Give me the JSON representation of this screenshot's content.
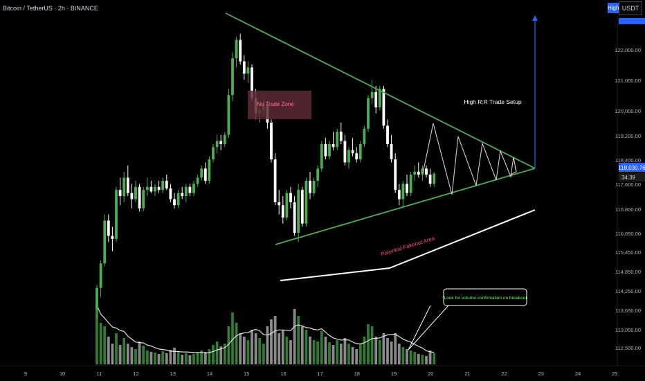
{
  "header": {
    "symbol_label": "Bitcoin / TetherUS · 2h · BINANCE"
  },
  "toolbar": {
    "high_label": "High",
    "currency_label": "USDT"
  },
  "price_axis": {
    "ticks": [
      "122,000.00",
      "121,000.00",
      "120,000.00",
      "119,200.00",
      "118,400.00",
      "117,600.00",
      "116,800.00",
      "116,050.00",
      "115,450.00",
      "114,850.00",
      "114,250.00",
      "113,650.00",
      "113,050.00",
      "112,500.00"
    ],
    "last_price_label": "118,030.76",
    "countdown_label": "34:39"
  },
  "time_axis": {
    "labels": [
      "9",
      "10",
      "11",
      "12",
      "13",
      "14",
      "15",
      "16",
      "17",
      "18",
      "19",
      "20",
      "21",
      "22",
      "23",
      "24",
      "25"
    ]
  },
  "annotations": {
    "no_trade_zone": "No Trade Zone",
    "setup_label": "High R:R Trade Setup",
    "fakeout_label": "Potential Fakeout Area",
    "volume_note": "*Look for volume confirmation on breakout."
  },
  "colors": {
    "up": "#4caf50",
    "down": "#ffffff",
    "triangle": "#4caf50",
    "accent": "#2962ff",
    "zone": "#5d2a35",
    "fakeout_text": "#ff4d8d",
    "vol_up": "#2e7d32",
    "vol_down": "#8a8a8a"
  },
  "chart_data": {
    "type": "candlestick",
    "title": "Bitcoin / TetherUS · 2h · BINANCE",
    "ylim": [
      112300,
      122800
    ],
    "candles": [
      {
        "o": 113600,
        "h": 114400,
        "l": 113300,
        "c": 114300,
        "v": 85
      },
      {
        "o": 114300,
        "h": 115200,
        "l": 114000,
        "c": 115100,
        "v": 60
      },
      {
        "o": 115100,
        "h": 116700,
        "l": 115000,
        "c": 116500,
        "v": 55
      },
      {
        "o": 116500,
        "h": 116700,
        "l": 115800,
        "c": 116000,
        "v": 40
      },
      {
        "o": 116000,
        "h": 116300,
        "l": 115500,
        "c": 115900,
        "v": 30
      },
      {
        "o": 115900,
        "h": 117600,
        "l": 115800,
        "c": 117500,
        "v": 45
      },
      {
        "o": 117500,
        "h": 117900,
        "l": 117000,
        "c": 117300,
        "v": 28
      },
      {
        "o": 117300,
        "h": 118100,
        "l": 117100,
        "c": 117900,
        "v": 38
      },
      {
        "o": 117900,
        "h": 118300,
        "l": 117300,
        "c": 117400,
        "v": 30
      },
      {
        "o": 117400,
        "h": 117700,
        "l": 116900,
        "c": 117200,
        "v": 25
      },
      {
        "o": 117200,
        "h": 117800,
        "l": 117100,
        "c": 117600,
        "v": 22
      },
      {
        "o": 117600,
        "h": 117700,
        "l": 116800,
        "c": 116900,
        "v": 33
      },
      {
        "o": 116900,
        "h": 117600,
        "l": 116800,
        "c": 117500,
        "v": 27
      },
      {
        "o": 117500,
        "h": 117900,
        "l": 117300,
        "c": 117600,
        "v": 20
      },
      {
        "o": 117600,
        "h": 117800,
        "l": 117400,
        "c": 117450,
        "v": 18
      },
      {
        "o": 117450,
        "h": 117700,
        "l": 117300,
        "c": 117600,
        "v": 17
      },
      {
        "o": 117600,
        "h": 117800,
        "l": 117400,
        "c": 117500,
        "v": 15
      },
      {
        "o": 117500,
        "h": 117900,
        "l": 117400,
        "c": 117800,
        "v": 19
      },
      {
        "o": 117800,
        "h": 118000,
        "l": 117500,
        "c": 117550,
        "v": 16
      },
      {
        "o": 117550,
        "h": 117700,
        "l": 117100,
        "c": 117200,
        "v": 21
      },
      {
        "o": 117200,
        "h": 117400,
        "l": 116900,
        "c": 117000,
        "v": 24
      },
      {
        "o": 117000,
        "h": 117500,
        "l": 116900,
        "c": 117400,
        "v": 18
      },
      {
        "o": 117400,
        "h": 117600,
        "l": 117200,
        "c": 117300,
        "v": 14
      },
      {
        "o": 117300,
        "h": 117700,
        "l": 117100,
        "c": 117600,
        "v": 16
      },
      {
        "o": 117600,
        "h": 117700,
        "l": 117300,
        "c": 117400,
        "v": 13
      },
      {
        "o": 117400,
        "h": 117800,
        "l": 117300,
        "c": 117700,
        "v": 15
      },
      {
        "o": 117700,
        "h": 118000,
        "l": 117600,
        "c": 117900,
        "v": 17
      },
      {
        "o": 117900,
        "h": 118300,
        "l": 117800,
        "c": 118200,
        "v": 20
      },
      {
        "o": 118200,
        "h": 118400,
        "l": 117700,
        "c": 117800,
        "v": 18
      },
      {
        "o": 117800,
        "h": 118600,
        "l": 117700,
        "c": 118500,
        "v": 22
      },
      {
        "o": 118500,
        "h": 119000,
        "l": 118400,
        "c": 118900,
        "v": 28
      },
      {
        "o": 118900,
        "h": 119300,
        "l": 118700,
        "c": 119100,
        "v": 33
      },
      {
        "o": 119100,
        "h": 119300,
        "l": 118800,
        "c": 119000,
        "v": 26
      },
      {
        "o": 119000,
        "h": 119400,
        "l": 118900,
        "c": 119300,
        "v": 30
      },
      {
        "o": 119300,
        "h": 120800,
        "l": 119200,
        "c": 120600,
        "v": 55
      },
      {
        "o": 120600,
        "h": 122000,
        "l": 120400,
        "c": 121800,
        "v": 75
      },
      {
        "o": 121800,
        "h": 122500,
        "l": 121500,
        "c": 122400,
        "v": 60
      },
      {
        "o": 122400,
        "h": 122600,
        "l": 121600,
        "c": 121700,
        "v": 45
      },
      {
        "o": 121700,
        "h": 121900,
        "l": 121100,
        "c": 121300,
        "v": 40
      },
      {
        "o": 121300,
        "h": 121700,
        "l": 121000,
        "c": 121500,
        "v": 35
      },
      {
        "o": 121500,
        "h": 121600,
        "l": 120400,
        "c": 120500,
        "v": 50
      },
      {
        "o": 120500,
        "h": 120800,
        "l": 119800,
        "c": 120000,
        "v": 45
      },
      {
        "o": 120000,
        "h": 120300,
        "l": 119700,
        "c": 120100,
        "v": 38
      },
      {
        "o": 120100,
        "h": 120500,
        "l": 119900,
        "c": 120300,
        "v": 30
      },
      {
        "o": 120300,
        "h": 120400,
        "l": 119500,
        "c": 119700,
        "v": 55
      },
      {
        "o": 119700,
        "h": 119800,
        "l": 118400,
        "c": 118500,
        "v": 65
      },
      {
        "o": 118500,
        "h": 118700,
        "l": 117000,
        "c": 117100,
        "v": 70
      },
      {
        "o": 117100,
        "h": 117500,
        "l": 116700,
        "c": 117000,
        "v": 45
      },
      {
        "o": 117000,
        "h": 117300,
        "l": 116400,
        "c": 116600,
        "v": 50
      },
      {
        "o": 116600,
        "h": 117500,
        "l": 116500,
        "c": 117400,
        "v": 40
      },
      {
        "o": 117400,
        "h": 117600,
        "l": 116900,
        "c": 117100,
        "v": 35
      },
      {
        "o": 117100,
        "h": 117300,
        "l": 116000,
        "c": 116100,
        "v": 80
      },
      {
        "o": 116100,
        "h": 117700,
        "l": 115800,
        "c": 117500,
        "v": 70
      },
      {
        "o": 117500,
        "h": 117600,
        "l": 116300,
        "c": 116400,
        "v": 55
      },
      {
        "o": 116400,
        "h": 117900,
        "l": 116300,
        "c": 117800,
        "v": 50
      },
      {
        "o": 117800,
        "h": 118100,
        "l": 117200,
        "c": 117400,
        "v": 40
      },
      {
        "o": 117400,
        "h": 117900,
        "l": 117300,
        "c": 117800,
        "v": 35
      },
      {
        "o": 117800,
        "h": 118300,
        "l": 117600,
        "c": 118200,
        "v": 33
      },
      {
        "o": 118200,
        "h": 119100,
        "l": 118100,
        "c": 119000,
        "v": 48
      },
      {
        "o": 119000,
        "h": 119200,
        "l": 118500,
        "c": 118600,
        "v": 40
      },
      {
        "o": 118600,
        "h": 119100,
        "l": 118500,
        "c": 119000,
        "v": 32
      },
      {
        "o": 119000,
        "h": 119400,
        "l": 118800,
        "c": 118900,
        "v": 28
      },
      {
        "o": 118900,
        "h": 119500,
        "l": 118800,
        "c": 119400,
        "v": 35
      },
      {
        "o": 119400,
        "h": 119700,
        "l": 119000,
        "c": 119100,
        "v": 30
      },
      {
        "o": 119100,
        "h": 119300,
        "l": 118300,
        "c": 118400,
        "v": 38
      },
      {
        "o": 118400,
        "h": 118900,
        "l": 118200,
        "c": 118800,
        "v": 30
      },
      {
        "o": 118800,
        "h": 119200,
        "l": 118600,
        "c": 118700,
        "v": 25
      },
      {
        "o": 118700,
        "h": 118900,
        "l": 118400,
        "c": 118500,
        "v": 22
      },
      {
        "o": 118500,
        "h": 119100,
        "l": 118400,
        "c": 119000,
        "v": 30
      },
      {
        "o": 119000,
        "h": 119600,
        "l": 118900,
        "c": 119500,
        "v": 40
      },
      {
        "o": 119500,
        "h": 120600,
        "l": 119400,
        "c": 120500,
        "v": 58
      },
      {
        "o": 120500,
        "h": 121100,
        "l": 120300,
        "c": 120700,
        "v": 55
      },
      {
        "o": 120700,
        "h": 120900,
        "l": 120000,
        "c": 120200,
        "v": 40
      },
      {
        "o": 120200,
        "h": 120900,
        "l": 120100,
        "c": 120800,
        "v": 35
      },
      {
        "o": 120800,
        "h": 120900,
        "l": 119500,
        "c": 119600,
        "v": 45
      },
      {
        "o": 119600,
        "h": 119800,
        "l": 118900,
        "c": 119000,
        "v": 38
      },
      {
        "o": 119000,
        "h": 119300,
        "l": 118400,
        "c": 118500,
        "v": 33
      },
      {
        "o": 118500,
        "h": 118700,
        "l": 117400,
        "c": 117500,
        "v": 45
      },
      {
        "o": 117500,
        "h": 117700,
        "l": 117000,
        "c": 117200,
        "v": 30
      },
      {
        "o": 117200,
        "h": 117800,
        "l": 116900,
        "c": 117700,
        "v": 25
      },
      {
        "o": 117700,
        "h": 118000,
        "l": 117300,
        "c": 117400,
        "v": 22
      },
      {
        "o": 117400,
        "h": 118100,
        "l": 117300,
        "c": 118000,
        "v": 20
      },
      {
        "o": 118000,
        "h": 118300,
        "l": 117800,
        "c": 118100,
        "v": 18
      },
      {
        "o": 118100,
        "h": 118400,
        "l": 117900,
        "c": 118000,
        "v": 15
      },
      {
        "o": 118000,
        "h": 118300,
        "l": 117800,
        "c": 118200,
        "v": 14
      },
      {
        "o": 118200,
        "h": 118300,
        "l": 117900,
        "c": 118000,
        "v": 12
      },
      {
        "o": 118000,
        "h": 118200,
        "l": 117600,
        "c": 117700,
        "v": 20
      },
      {
        "o": 117700,
        "h": 118100,
        "l": 117600,
        "c": 118030,
        "v": 16
      }
    ]
  }
}
